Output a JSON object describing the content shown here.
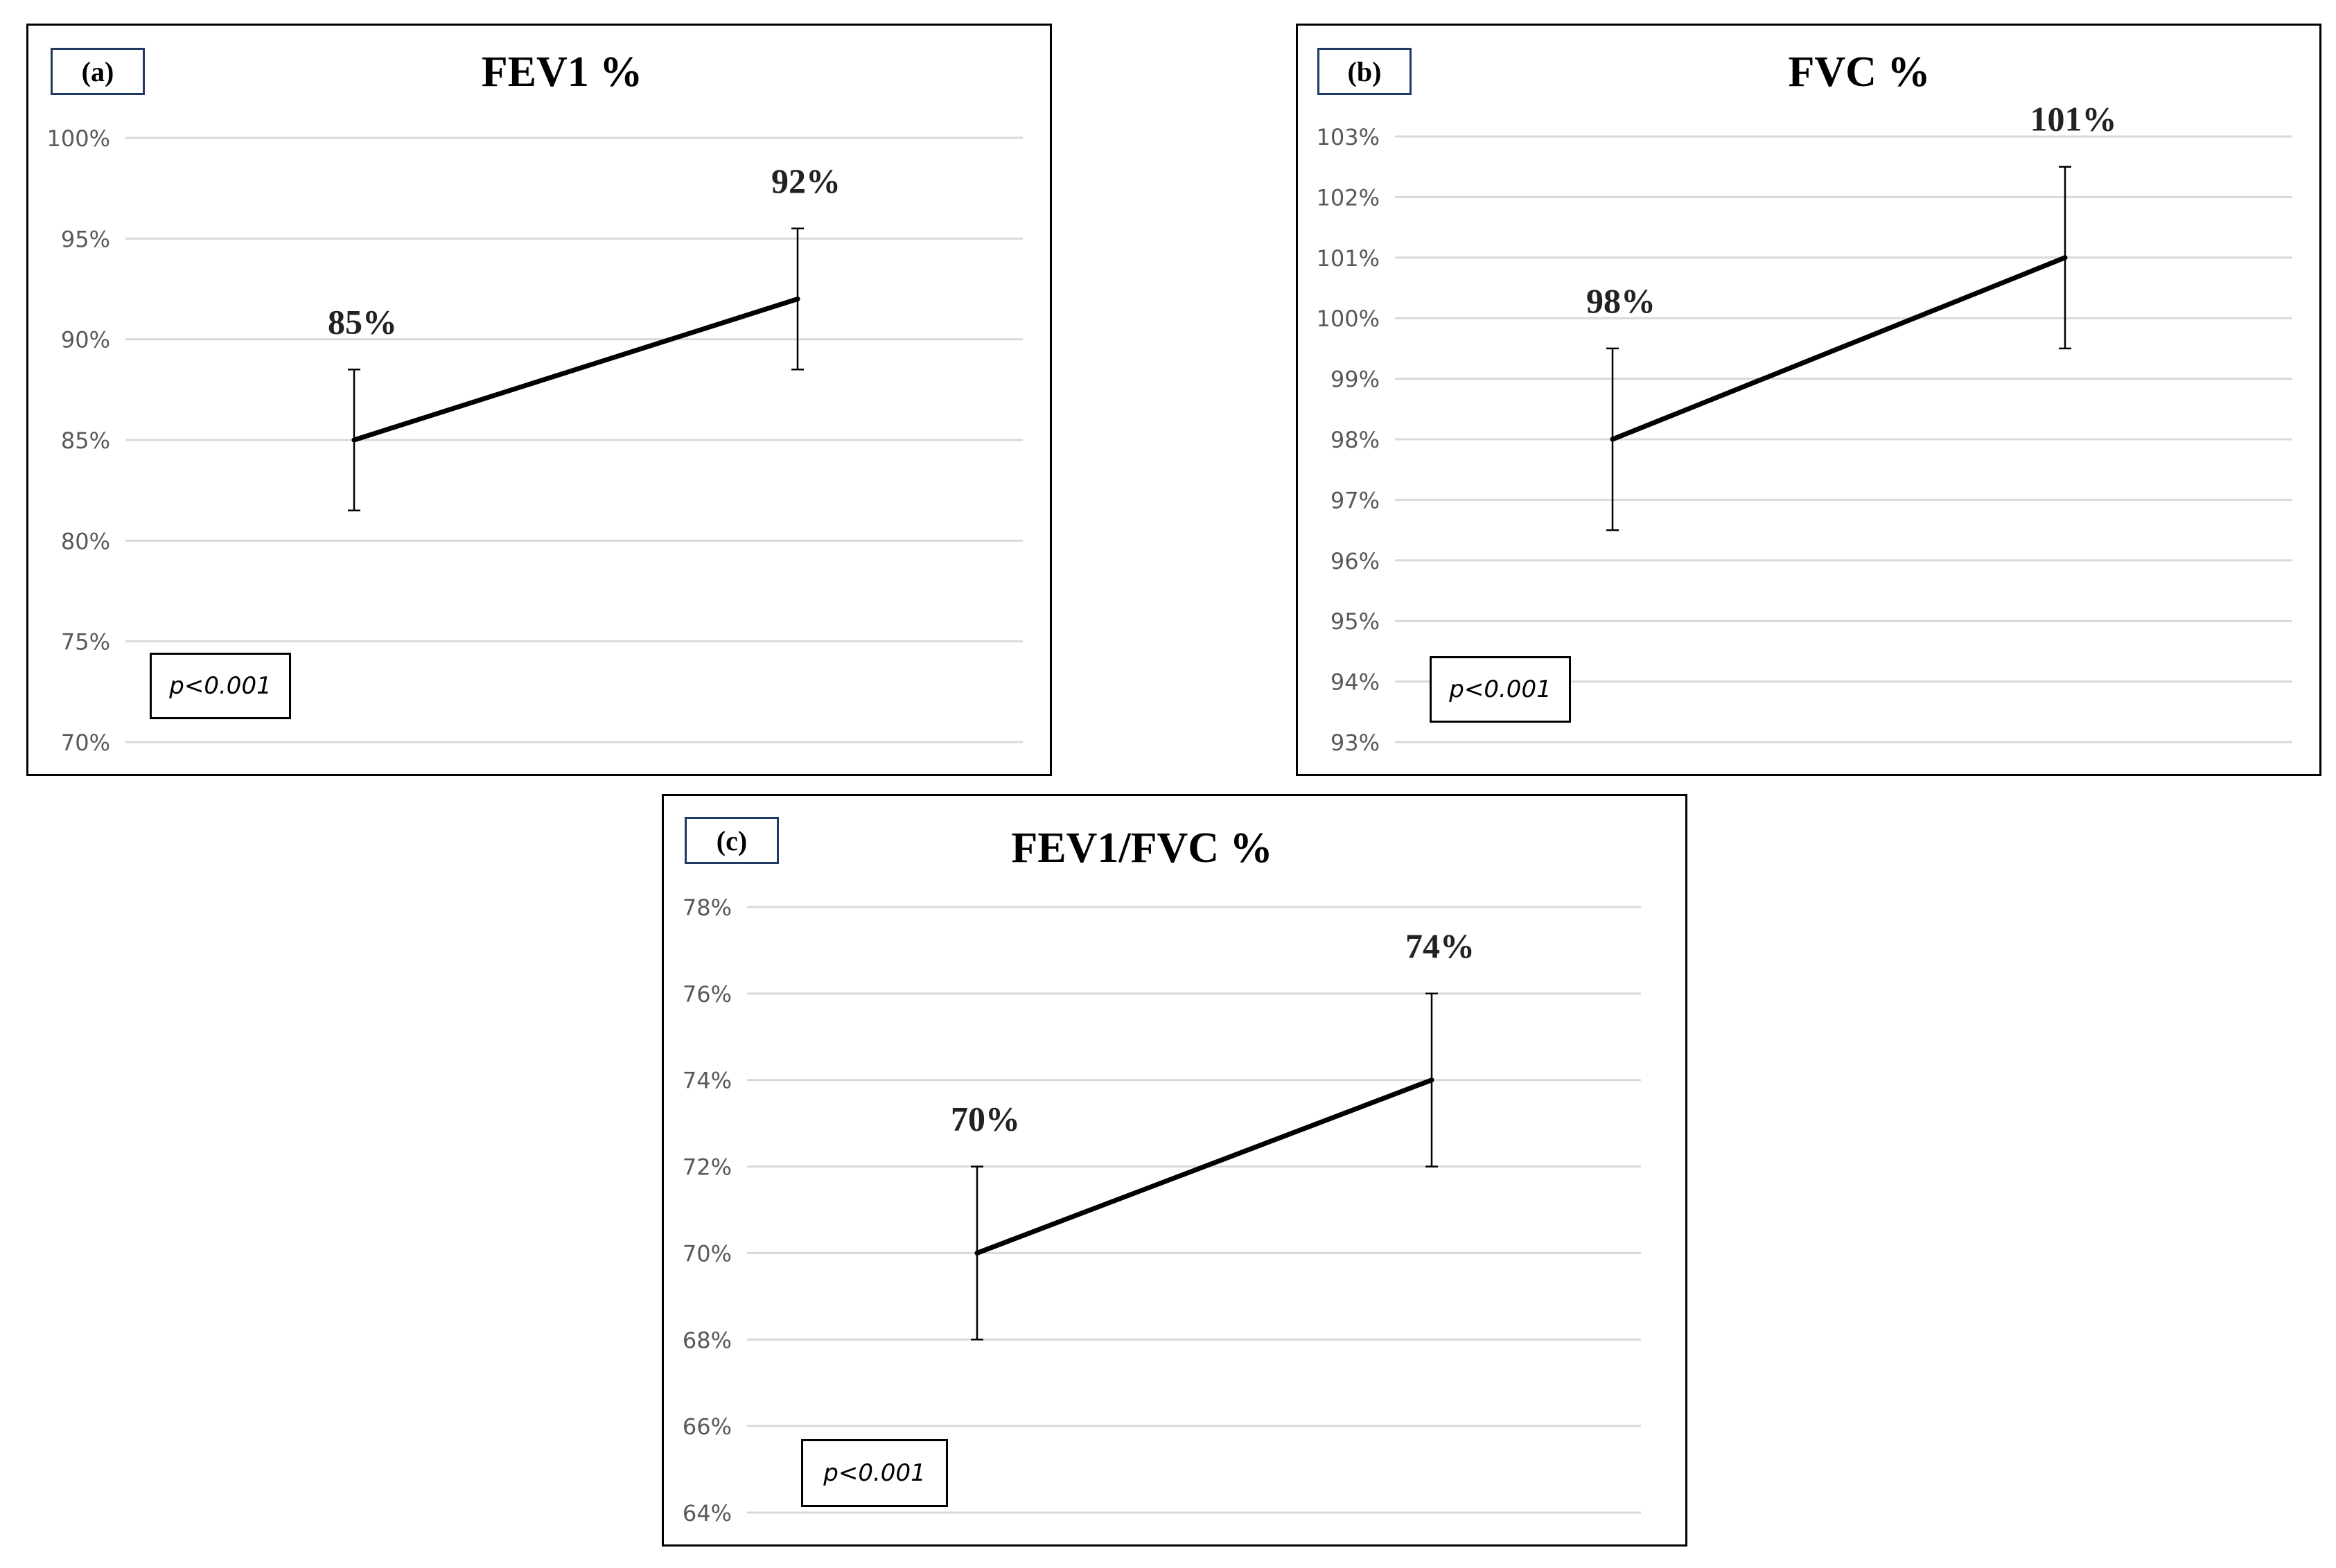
{
  "chart_data": [
    {
      "type": "line",
      "panel_tag": "(a)",
      "title": "FEV1 %",
      "categories": [
        "",
        ""
      ],
      "values": [
        85,
        92
      ],
      "error_low": [
        81.5,
        88.5
      ],
      "error_high": [
        88.5,
        95.5
      ],
      "data_labels": [
        "85%",
        "92%"
      ],
      "ylim": [
        70,
        100
      ],
      "yticks": [
        70,
        75,
        80,
        85,
        90,
        95,
        100
      ],
      "ytick_labels": [
        "70%",
        "75%",
        "80%",
        "85%",
        "90%",
        "95%",
        "100%"
      ],
      "annotation": "p<0.001",
      "grid": true
    },
    {
      "type": "line",
      "panel_tag": "(b)",
      "title": "FVC %",
      "categories": [
        "",
        ""
      ],
      "values": [
        98,
        101
      ],
      "error_low": [
        96.5,
        99.5
      ],
      "error_high": [
        99.5,
        102.5
      ],
      "data_labels": [
        "98%",
        "101%"
      ],
      "ylim": [
        93,
        103
      ],
      "yticks": [
        93,
        94,
        95,
        96,
        97,
        98,
        99,
        100,
        101,
        102,
        103
      ],
      "ytick_labels": [
        "93%",
        "94%",
        "95%",
        "96%",
        "97%",
        "98%",
        "99%",
        "100%",
        "101%",
        "102%",
        "103%"
      ],
      "annotation": "p<0.001",
      "grid": true
    },
    {
      "type": "line",
      "panel_tag": "(c)",
      "title": "FEV1/FVC %",
      "categories": [
        "",
        ""
      ],
      "values": [
        70,
        74
      ],
      "error_low": [
        68,
        72
      ],
      "error_high": [
        72,
        76
      ],
      "data_labels": [
        "70%",
        "74%"
      ],
      "ylim": [
        64,
        78
      ],
      "yticks": [
        64,
        66,
        68,
        70,
        72,
        74,
        76,
        78
      ],
      "ytick_labels": [
        "64%",
        "66%",
        "68%",
        "70%",
        "72%",
        "74%",
        "76%",
        "78%"
      ],
      "annotation": "p<0.001",
      "grid": true
    }
  ]
}
